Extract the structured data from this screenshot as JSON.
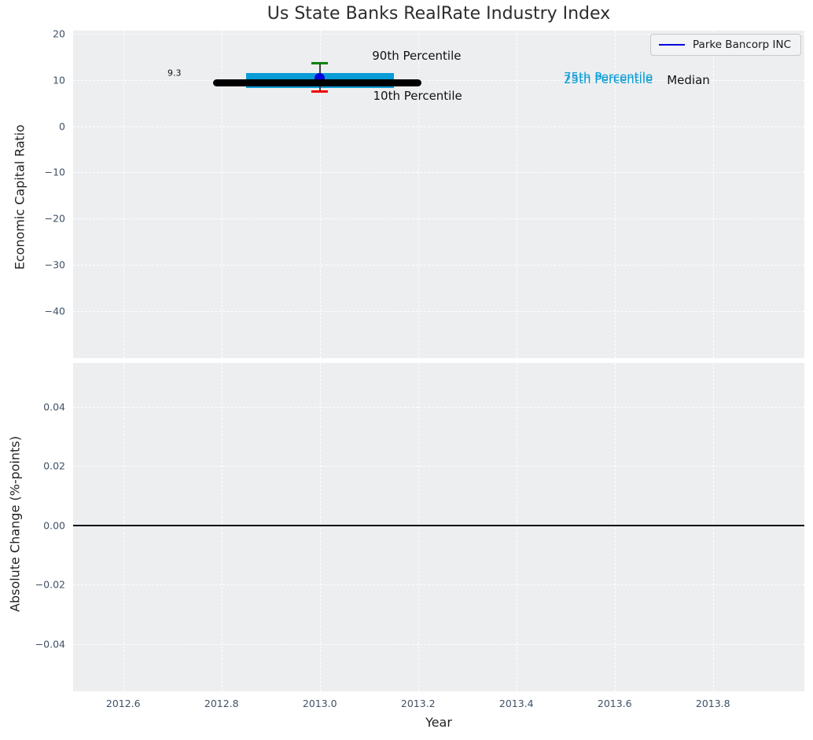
{
  "figure": {
    "title": "Us State Banks RealRate Industry Index"
  },
  "colors": {
    "plot_bg": "#eceef0",
    "grid": "#ffffff",
    "tick_label": "#3f5166",
    "axis_label": "#222222",
    "title": "#2d2d2d",
    "median_line": "#000000",
    "iqr_band": "#0a9cd6",
    "p90_cap": "#008000",
    "p10_cap": "#f00000",
    "whisker": "#404040",
    "company": "#0000dd",
    "zero_line": "#000000",
    "percentile_text": "#0a9cd6",
    "annotation_text": "#111111"
  },
  "legend": {
    "label": "Parke Bancorp INC"
  },
  "chart_data": [
    {
      "type": "line",
      "panel": "top",
      "title": "Us State Banks RealRate Industry Index",
      "xlabel": "",
      "ylabel": "Economic Capital Ratio",
      "grid": true,
      "legend_position": "upper right",
      "xlim": [
        2012.498,
        2013.986
      ],
      "ylim": [
        -50.1,
        20.6
      ],
      "xticks": [
        2012.6,
        2012.8,
        2013.0,
        2013.2,
        2013.4,
        2013.6,
        2013.8
      ],
      "xtick_labels": [
        "2012.6",
        "2012.8",
        "2013.0",
        "2013.2",
        "2013.4",
        "2013.6",
        "2013.8"
      ],
      "show_xtick_labels": false,
      "yticks": [
        20,
        10,
        0,
        -10,
        -20,
        -30,
        -40
      ],
      "ytick_labels": [
        "20",
        "10",
        "0",
        "−10",
        "−20",
        "−30",
        "−40"
      ],
      "series": {
        "median_line": {
          "label": "Median",
          "x_start": 2012.79,
          "x_end": 2013.2,
          "y": 9.3
        },
        "iqr_band": {
          "label": "25th–75th Percentile",
          "x_start": 2012.85,
          "x_end": 2013.15,
          "y_low": 8.2,
          "y_high": 11.5
        },
        "whisker": {
          "x": 2013.0,
          "p10": 7.4,
          "p90": 13.5
        },
        "company_point": {
          "name": "Parke Bancorp INC",
          "x": 2013.0,
          "y": 10.3
        }
      },
      "annotations": [
        {
          "name": "median-value-label",
          "text": "9.3",
          "x": 2012.704,
          "y": 11.4,
          "size": 11,
          "color": "#111111"
        },
        {
          "name": "p90-label",
          "text": "90th Percentile",
          "x": 2013.197,
          "y": 15.2,
          "size": 15,
          "color": "#111111"
        },
        {
          "name": "p10-label",
          "text": "10th Percentile",
          "x": 2013.199,
          "y": 6.6,
          "size": 15,
          "color": "#111111"
        },
        {
          "name": "p75-label",
          "text": "75th Percentile",
          "x": 2013.587,
          "y": 10.55,
          "size": 15,
          "color": "#0a9cd6"
        },
        {
          "name": "p25-label",
          "text": "25th Percentile",
          "x": 2013.587,
          "y": 10.05,
          "size": 15,
          "color": "#0a9cd6"
        },
        {
          "name": "median-label",
          "text": "Median",
          "x": 2013.75,
          "y": 9.9,
          "size": 15,
          "color": "#111111"
        }
      ]
    },
    {
      "type": "line",
      "panel": "bottom",
      "title": "",
      "xlabel": "Year",
      "ylabel": "Absolute Change (%-points)",
      "grid": true,
      "xlim": [
        2012.498,
        2013.986
      ],
      "ylim": [
        -0.0559,
        0.0548
      ],
      "xticks": [
        2012.6,
        2012.8,
        2013.0,
        2013.2,
        2013.4,
        2013.6,
        2013.8
      ],
      "xtick_labels": [
        "2012.6",
        "2012.8",
        "2013.0",
        "2013.2",
        "2013.4",
        "2013.6",
        "2013.8"
      ],
      "show_xtick_labels": true,
      "yticks": [
        0.04,
        0.02,
        0.0,
        -0.02,
        -0.04
      ],
      "ytick_labels": [
        "0.04",
        "0.02",
        "0.00",
        "−0.02",
        "−0.04"
      ],
      "zero_line": 0.0,
      "series": {}
    }
  ]
}
